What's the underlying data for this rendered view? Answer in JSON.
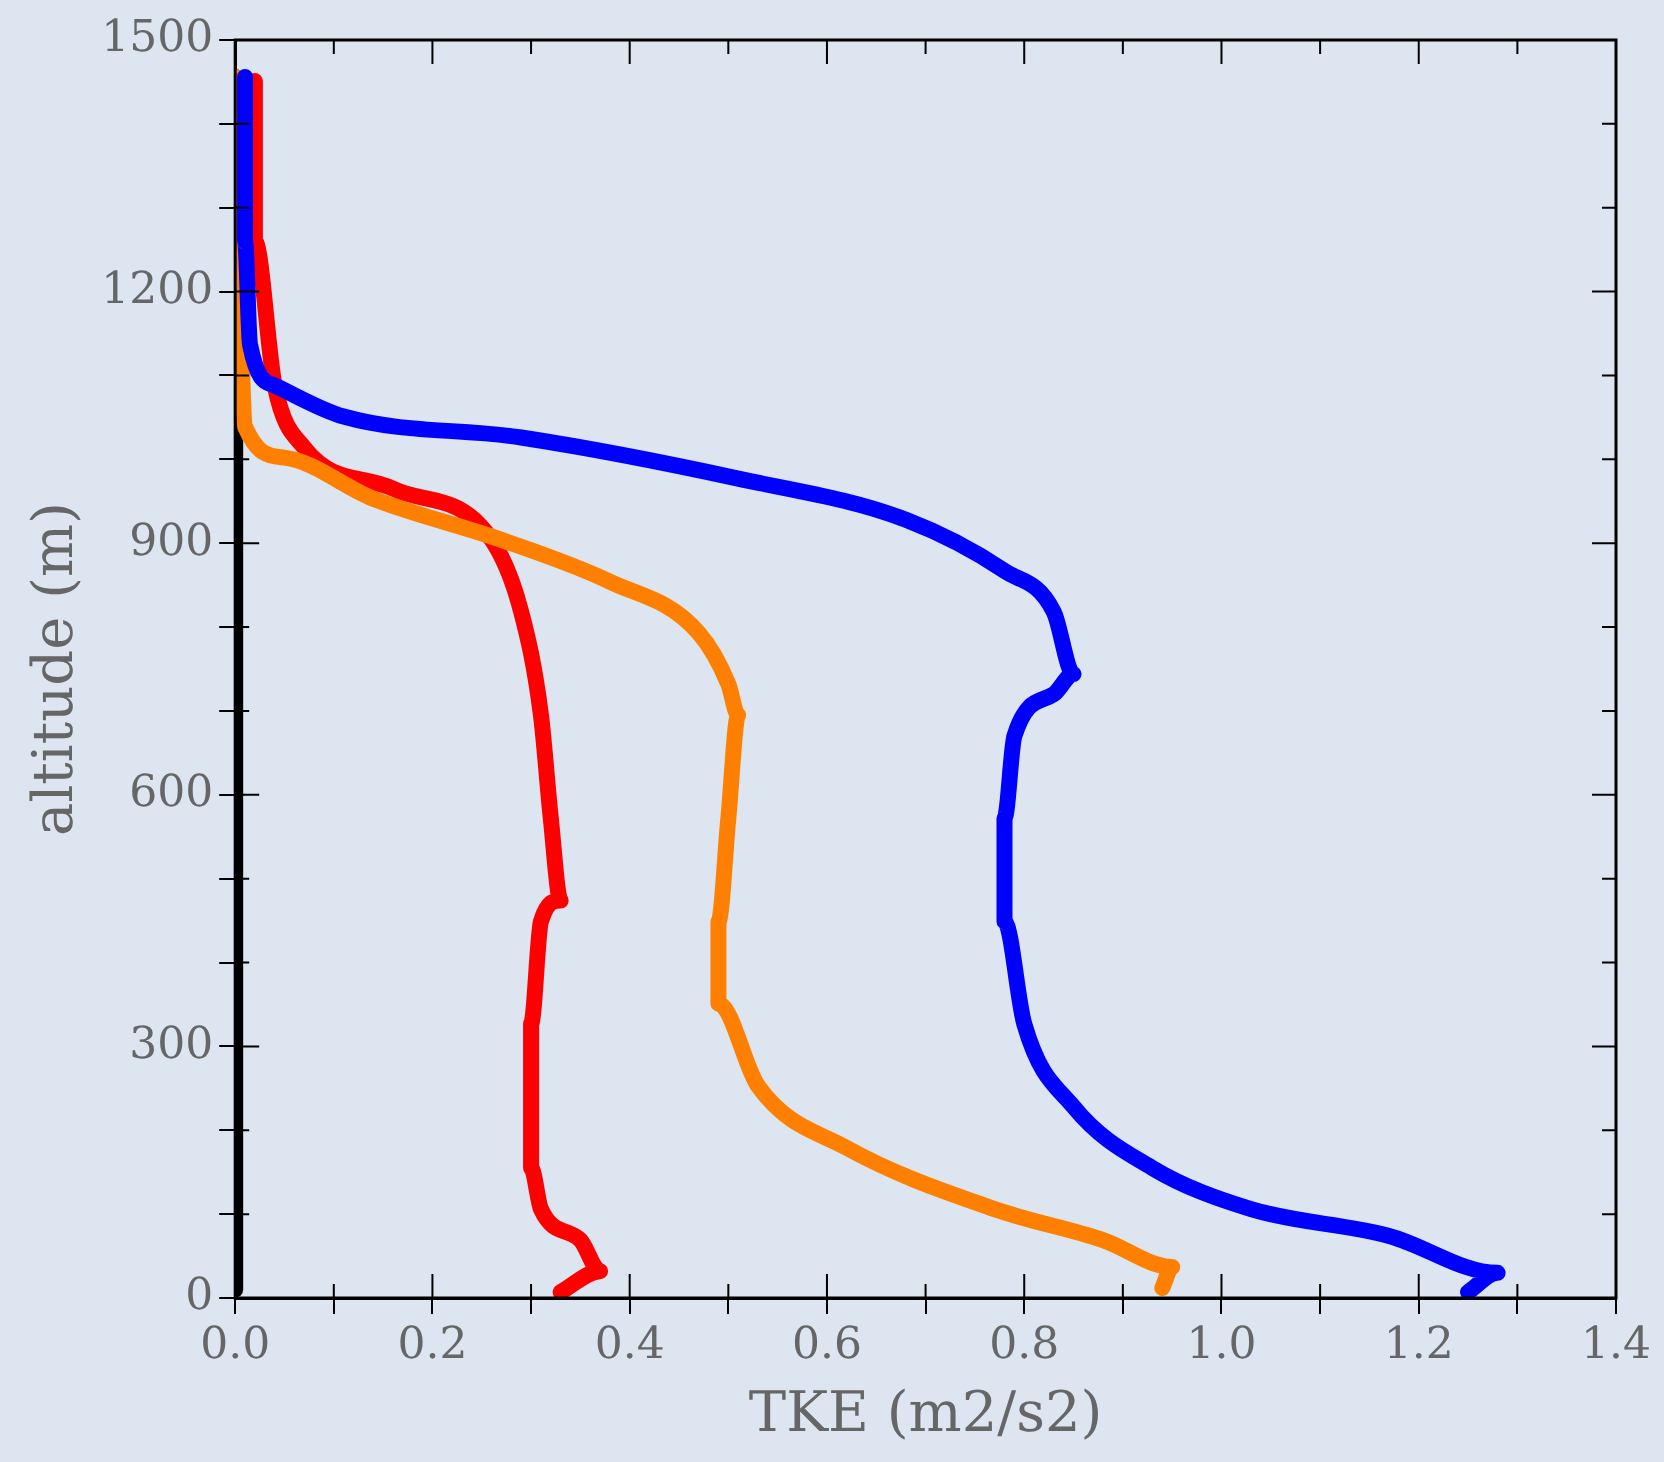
{
  "chart_data": {
    "type": "line",
    "xlabel": "TKE (m2/s2)",
    "ylabel": "altitude (m)",
    "xlim": [
      0,
      1.4
    ],
    "ylim": [
      0,
      1500
    ],
    "xticks": [
      {
        "value": 0,
        "label": "0.0"
      },
      {
        "value": 0.1,
        "label": null
      },
      {
        "value": 0.2,
        "label": "0.2"
      },
      {
        "value": 0.3,
        "label": null
      },
      {
        "value": 0.4,
        "label": "0.4"
      },
      {
        "value": 0.5,
        "label": null
      },
      {
        "value": 0.6,
        "label": "0.6"
      },
      {
        "value": 0.7,
        "label": null
      },
      {
        "value": 0.8,
        "label": "0.8"
      },
      {
        "value": 0.9,
        "label": null
      },
      {
        "value": 1,
        "label": "1.0"
      },
      {
        "value": 1.1,
        "label": null
      },
      {
        "value": 1.2,
        "label": "1.2"
      },
      {
        "value": 1.3,
        "label": null
      },
      {
        "value": 1.4,
        "label": "1.4"
      }
    ],
    "yticks": [
      0,
      {
        "value": 100,
        "label": null
      },
      {
        "value": 200,
        "label": null
      },
      300,
      {
        "value": 400,
        "label": null
      },
      {
        "value": 500,
        "label": null
      },
      600,
      {
        "value": 700,
        "label": null
      },
      {
        "value": 800,
        "label": null
      },
      900,
      {
        "value": 1000,
        "label": null
      },
      {
        "value": 1100,
        "label": null
      },
      1200,
      {
        "value": 1300,
        "label": null
      },
      {
        "value": 1400,
        "label": null
      },
      1500
    ],
    "grid": false,
    "legend": false,
    "marker": "none",
    "line_style": "solid",
    "series": [
      {
        "color": "#0000ff",
        "x": [
          1.25,
          1.28,
          1.17,
          1.03,
          0.93,
          0.85,
          0.8,
          0.78,
          0.78,
          0.79,
          0.83,
          0.85,
          0.83,
          0.78,
          0.68,
          0.51,
          0.29,
          0.11,
          0.04,
          0.015,
          0.01,
          0.01
        ],
        "values": [
          7,
          30,
          74,
          106,
          155,
          228,
          327,
          449,
          572,
          670,
          720,
          744,
          818,
          867,
          928,
          977,
          1026,
          1051,
          1088,
          1137,
          1260,
          1456
        ]
      },
      {
        "color": "#ff8000",
        "x": [
          0.94,
          0.95,
          0.88,
          0.77,
          0.62,
          0.53,
          0.49,
          0.49,
          0.5,
          0.51,
          0.5,
          0.47,
          0.38,
          0.27,
          0.14,
          0.05,
          0.01,
          0.005,
          0
        ],
        "values": [
          12,
          37,
          69,
          106,
          179,
          253,
          351,
          449,
          572,
          695,
          732,
          793,
          854,
          904,
          953,
          1002,
          1039,
          1186,
          1456
        ]
      },
      {
        "color": "#ff0000",
        "x": [
          0.33,
          0.37,
          0.35,
          0.31,
          0.3,
          0.3,
          0.31,
          0.33,
          0.32,
          0.31,
          0.29,
          0.26,
          0.16,
          0.07,
          0.04,
          0.02,
          0.02
        ],
        "values": [
          7,
          32,
          69,
          106,
          155,
          327,
          449,
          474,
          572,
          695,
          818,
          904,
          965,
          1014,
          1088,
          1260,
          1451
        ]
      },
      {
        "color": "#000000",
        "x": [
          0,
          0,
          0,
          0
        ],
        "values": [
          10,
          500,
          1040,
          1456
        ]
      }
    ]
  }
}
